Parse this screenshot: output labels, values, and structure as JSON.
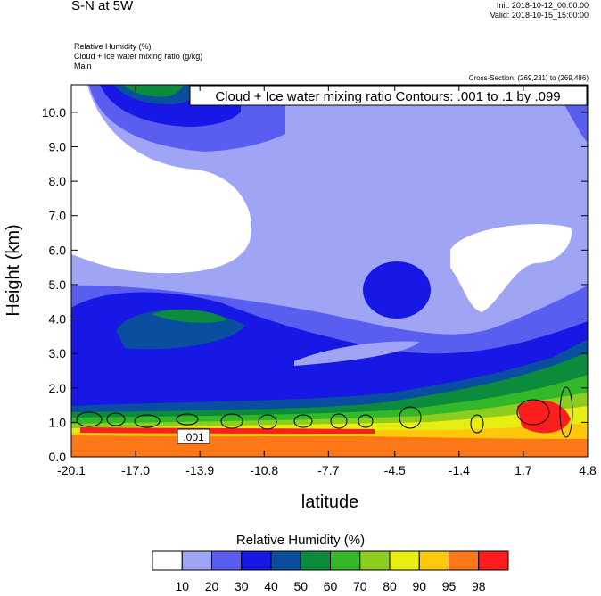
{
  "header": {
    "title": "S-N at 5W",
    "init": "Init: 2018-10-12_00:00:00",
    "valid": "Valid: 2018-10-15_15:00:00"
  },
  "fields": {
    "line1": "Relative Humidity   (%)",
    "line2": "Cloud + Ice water mixing ratio   (g/kg)",
    "line3": "Main"
  },
  "cross_section": "Cross-Section: (269,231) to (269,486)",
  "contour_label_box": "Cloud + Ice water mixing ratio Contours: .001 to .1 by .099",
  "contour_value_label": ".001",
  "chart_data": {
    "type": "heatmap",
    "title": "S-N at 5W",
    "xlabel": "latitude",
    "ylabel": "Height (km)",
    "x_ticks": [
      "-20.1",
      "-17.0",
      "-13.9",
      "-10.8",
      "-7.7",
      "-4.5",
      "-1.4",
      "1.7",
      "4.8"
    ],
    "y_ticks": [
      "0.0",
      "1.0",
      "2.0",
      "3.0",
      "4.0",
      "5.0",
      "6.0",
      "7.0",
      "8.0",
      "9.0",
      "10.0"
    ],
    "xlim": [
      -20.1,
      4.8
    ],
    "ylim": [
      0,
      10.8
    ],
    "colorbar": {
      "title": "Relative Humidity  (%)",
      "levels": [
        "10",
        "20",
        "30",
        "40",
        "50",
        "60",
        "70",
        "80",
        "90",
        "95",
        "98"
      ],
      "colors": [
        "#ffffff",
        "#a0a4f5",
        "#5a5ef0",
        "#1818e6",
        "#0a4ea0",
        "#0a8c3c",
        "#33b82a",
        "#8ccd1e",
        "#e8ee12",
        "#ffc80a",
        "#ff7818",
        "#ff1e1e"
      ]
    },
    "contours": {
      "field": "Cloud + Ice water mixing ratio",
      "levels": [
        0.001,
        0.1
      ],
      "interval": 0.099
    }
  }
}
